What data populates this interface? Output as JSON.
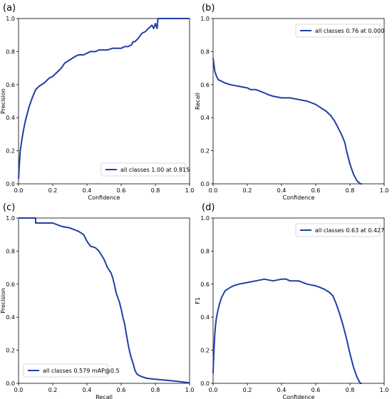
{
  "figure": {
    "panel_labels": [
      "(a)",
      "(b)",
      "(c)",
      "(d)"
    ]
  },
  "style": {
    "line_color": "#1f3fa6"
  },
  "chart_data": [
    {
      "type": "line",
      "panel": "(a)",
      "xlabel": "Confidence",
      "ylabel": "Precision",
      "xlim": [
        0,
        1
      ],
      "ylim": [
        0,
        1
      ],
      "xticks": [
        "0.0",
        "0.2",
        "0.4",
        "0.6",
        "0.8",
        "1.0"
      ],
      "yticks": [
        "0.0",
        "0.2",
        "0.4",
        "0.6",
        "0.8",
        "1.0"
      ],
      "grid": false,
      "legend_position": "bottom-right",
      "series": [
        {
          "name": "all classes 1.00 at 0.815",
          "x": [
            0.0,
            0.005,
            0.01,
            0.02,
            0.03,
            0.04,
            0.05,
            0.06,
            0.08,
            0.1,
            0.12,
            0.15,
            0.18,
            0.2,
            0.22,
            0.25,
            0.27,
            0.3,
            0.33,
            0.35,
            0.38,
            0.4,
            0.42,
            0.45,
            0.47,
            0.5,
            0.52,
            0.55,
            0.57,
            0.6,
            0.62,
            0.64,
            0.66,
            0.67,
            0.68,
            0.7,
            0.72,
            0.74,
            0.75,
            0.77,
            0.78,
            0.79,
            0.8,
            0.81,
            0.815,
            0.82,
            0.85,
            0.9,
            1.0
          ],
          "y": [
            0.03,
            0.12,
            0.2,
            0.27,
            0.33,
            0.38,
            0.42,
            0.46,
            0.52,
            0.57,
            0.59,
            0.61,
            0.64,
            0.65,
            0.67,
            0.7,
            0.73,
            0.75,
            0.77,
            0.78,
            0.78,
            0.79,
            0.8,
            0.8,
            0.81,
            0.81,
            0.81,
            0.82,
            0.82,
            0.82,
            0.83,
            0.83,
            0.84,
            0.86,
            0.86,
            0.88,
            0.91,
            0.92,
            0.93,
            0.95,
            0.96,
            0.94,
            0.97,
            0.94,
            1.0,
            1.0,
            1.0,
            1.0,
            1.0
          ]
        }
      ]
    },
    {
      "type": "line",
      "panel": "(b)",
      "xlabel": "Confidence",
      "ylabel": "Recall",
      "xlim": [
        0,
        1
      ],
      "ylim": [
        0,
        1
      ],
      "xticks": [
        "0.0",
        "0.2",
        "0.4",
        "0.6",
        "0.8",
        "1.0"
      ],
      "yticks": [
        "0.0",
        "0.2",
        "0.4",
        "0.6",
        "0.8",
        "1.0"
      ],
      "grid": false,
      "legend_position": "top-right",
      "series": [
        {
          "name": "all classes 0.76 at 0.000",
          "x": [
            0.0,
            0.005,
            0.01,
            0.02,
            0.03,
            0.05,
            0.07,
            0.1,
            0.15,
            0.2,
            0.22,
            0.25,
            0.3,
            0.32,
            0.35,
            0.4,
            0.45,
            0.5,
            0.55,
            0.6,
            0.63,
            0.66,
            0.69,
            0.71,
            0.73,
            0.75,
            0.77,
            0.78,
            0.79,
            0.8,
            0.82,
            0.84,
            0.86,
            0.87
          ],
          "y": [
            0.76,
            0.72,
            0.68,
            0.65,
            0.63,
            0.62,
            0.61,
            0.6,
            0.59,
            0.58,
            0.57,
            0.57,
            0.55,
            0.54,
            0.53,
            0.52,
            0.52,
            0.51,
            0.5,
            0.48,
            0.46,
            0.44,
            0.41,
            0.38,
            0.34,
            0.3,
            0.25,
            0.2,
            0.16,
            0.12,
            0.06,
            0.02,
            0.0,
            0.0
          ]
        }
      ]
    },
    {
      "type": "line",
      "panel": "(c)",
      "xlabel": "Recall",
      "ylabel": "Precision",
      "xlim": [
        0,
        1
      ],
      "ylim": [
        0,
        1
      ],
      "xticks": [
        "0.0",
        "0.2",
        "0.4",
        "0.6",
        "0.8",
        "1.0"
      ],
      "yticks": [
        "0.0",
        "0.2",
        "0.4",
        "0.6",
        "0.8",
        "1.0"
      ],
      "grid": false,
      "legend_position": "bottom-left",
      "series": [
        {
          "name": "all classes 0.579 mAP@0.5",
          "x": [
            0.0,
            0.1,
            0.1,
            0.2,
            0.25,
            0.3,
            0.35,
            0.38,
            0.4,
            0.42,
            0.45,
            0.47,
            0.5,
            0.52,
            0.54,
            0.55,
            0.56,
            0.57,
            0.58,
            0.59,
            0.6,
            0.61,
            0.62,
            0.63,
            0.64,
            0.65,
            0.66,
            0.67,
            0.68,
            0.69,
            0.7,
            0.72,
            0.75,
            0.8,
            0.9,
            1.0
          ],
          "y": [
            1.0,
            1.0,
            0.97,
            0.97,
            0.95,
            0.94,
            0.92,
            0.9,
            0.86,
            0.83,
            0.82,
            0.8,
            0.75,
            0.7,
            0.67,
            0.64,
            0.6,
            0.55,
            0.52,
            0.49,
            0.45,
            0.4,
            0.36,
            0.3,
            0.24,
            0.19,
            0.15,
            0.12,
            0.08,
            0.06,
            0.05,
            0.04,
            0.03,
            0.025,
            0.015,
            0.003
          ]
        }
      ]
    },
    {
      "type": "line",
      "panel": "(d)",
      "xlabel": "Confidence",
      "ylabel": "F1",
      "xlim": [
        0,
        1
      ],
      "ylim": [
        0,
        1
      ],
      "xticks": [
        "0.0",
        "0.2",
        "0.4",
        "0.6",
        "0.8",
        "1.0"
      ],
      "yticks": [
        "0.0",
        "0.2",
        "0.4",
        "0.6",
        "0.8",
        "1.0"
      ],
      "grid": false,
      "legend_position": "top-right",
      "series": [
        {
          "name": "all classes 0.63 at 0.427",
          "x": [
            0.0,
            0.005,
            0.01,
            0.015,
            0.02,
            0.03,
            0.04,
            0.05,
            0.07,
            0.1,
            0.12,
            0.15,
            0.2,
            0.25,
            0.3,
            0.35,
            0.4,
            0.427,
            0.45,
            0.5,
            0.55,
            0.6,
            0.65,
            0.68,
            0.7,
            0.72,
            0.74,
            0.76,
            0.78,
            0.8,
            0.82,
            0.84,
            0.86,
            0.87
          ],
          "y": [
            0.06,
            0.2,
            0.3,
            0.36,
            0.4,
            0.45,
            0.49,
            0.52,
            0.56,
            0.58,
            0.59,
            0.6,
            0.61,
            0.62,
            0.63,
            0.62,
            0.63,
            0.63,
            0.62,
            0.62,
            0.6,
            0.59,
            0.57,
            0.55,
            0.53,
            0.48,
            0.42,
            0.35,
            0.27,
            0.18,
            0.1,
            0.04,
            0.0,
            0.0
          ]
        }
      ]
    }
  ]
}
